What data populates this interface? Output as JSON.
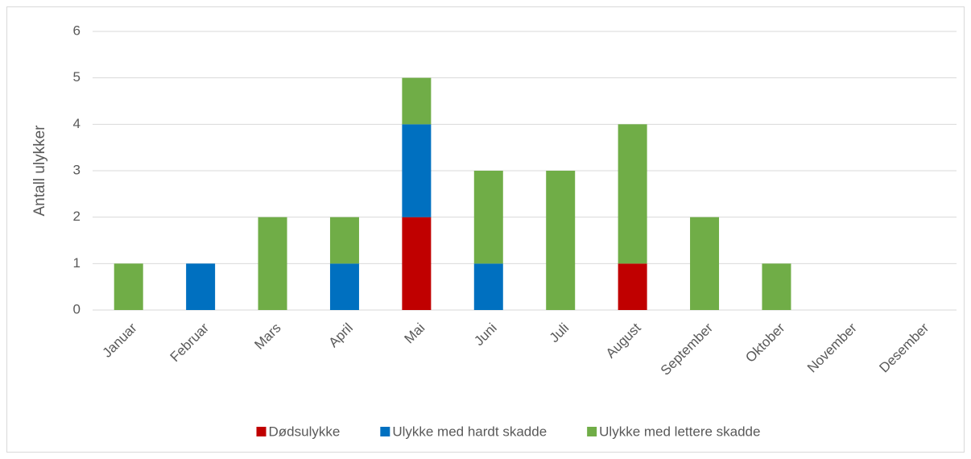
{
  "chart_data": {
    "type": "stacked_bar",
    "y_label": "Antall ulykker",
    "categories": [
      "Januar",
      "Februar",
      "Mars",
      "April",
      "Mai",
      "Juni",
      "Juli",
      "August",
      "September",
      "Oktober",
      "November",
      "Desember"
    ],
    "series": [
      {
        "name": "Dødsulykke",
        "color": "#c00000",
        "values": [
          0,
          0,
          0,
          0,
          2,
          0,
          0,
          1,
          0,
          0,
          0,
          0
        ]
      },
      {
        "name": "Ulykke med hardt skadde",
        "color": "#0070c0",
        "values": [
          0,
          1,
          0,
          1,
          2,
          1,
          0,
          0,
          0,
          0,
          0,
          0
        ]
      },
      {
        "name": "Ulykke med lettere skadde",
        "color": "#70ad47",
        "values": [
          1,
          0,
          2,
          1,
          1,
          2,
          3,
          3,
          2,
          1,
          0,
          0
        ]
      }
    ],
    "ylim": [
      0,
      6
    ],
    "yticks": [
      0,
      1,
      2,
      3,
      4,
      5,
      6
    ],
    "grid": true,
    "legend": "bottom"
  }
}
